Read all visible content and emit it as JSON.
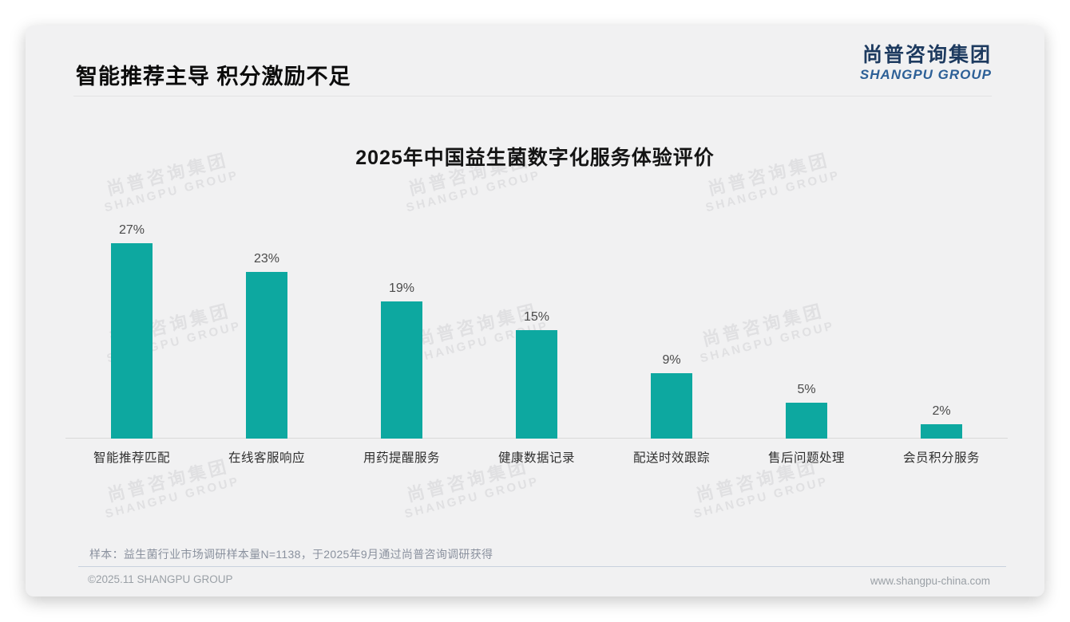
{
  "page": {
    "slide_title": "智能推荐主导 积分激励不足",
    "logo": {
      "cn": "尚普咨询集团",
      "en": "SHANGPU GROUP"
    },
    "watermark": {
      "cn": "尚普咨询集团",
      "en": "SHANGPU GROUP"
    },
    "footnote": "样本：益生菌行业市场调研样本量N=1138，于2025年9月通过尚普咨询调研获得",
    "copyright": "©2025.11 SHANGPU GROUP",
    "website": "www.shangpu-china.com"
  },
  "chart_data": {
    "type": "bar",
    "title": "2025年中国益生菌数字化服务体验评价",
    "categories": [
      "智能推荐匹配",
      "在线客服响应",
      "用药提醒服务",
      "健康数据记录",
      "配送时效跟踪",
      "售后问题处理",
      "会员积分服务"
    ],
    "values": [
      27,
      23,
      19,
      15,
      9,
      5,
      2
    ],
    "value_labels": [
      "27%",
      "23%",
      "19%",
      "15%",
      "9%",
      "5%",
      "2%"
    ],
    "unit": "%",
    "ylim": [
      0,
      30
    ],
    "grid": false,
    "legend": false,
    "bar_color": "#0DA8A0",
    "value_label_color": "#4a4a4a",
    "category_label_color": "#2e2e2e"
  }
}
